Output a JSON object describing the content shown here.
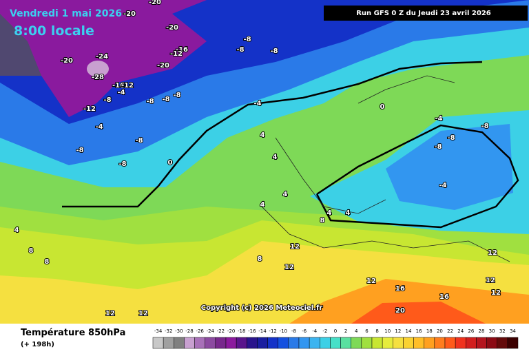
{
  "header": {
    "date": "Vendredi 1 mai 2026",
    "time": "8:00 locale",
    "run": "Run GFS 0 Z du Jeudi 23 avril 2026"
  },
  "copyright": "Copyright (c) 2026 Meteociel.fr",
  "footer": {
    "title": "Température 850hPa",
    "lead": "(+ 198h)"
  },
  "legend": {
    "ticks": [
      -34,
      -32,
      -30,
      -28,
      -26,
      -24,
      -22,
      -20,
      -18,
      -16,
      -14,
      -12,
      -10,
      -8,
      -6,
      -4,
      -2,
      0,
      2,
      4,
      6,
      8,
      10,
      12,
      14,
      16,
      18,
      20,
      22,
      24,
      26,
      28,
      30,
      32,
      34
    ],
    "colors": [
      "#c8c8c8",
      "#a0a0a0",
      "#808080",
      "#c8a0d0",
      "#a870b8",
      "#8c4aa0",
      "#78288c",
      "#8c1a9e",
      "#5a148c",
      "#2a148c",
      "#1a1ea0",
      "#1432c8",
      "#1450e0",
      "#2a7ae8",
      "#3296f0",
      "#3cb4f0",
      "#3cd0e6",
      "#46e0c8",
      "#5ae0a0",
      "#7ed957",
      "#a0e040",
      "#c8e632",
      "#e6ec3c",
      "#f5e040",
      "#fad232",
      "#ffbe28",
      "#ffa020",
      "#ff7d1e",
      "#ff5a1a",
      "#f0321e",
      "#d21e1e",
      "#b4141e",
      "#8c0a14",
      "#640a0a",
      "#3c0000"
    ]
  },
  "map": {
    "labels": [
      -20,
      -20,
      -20,
      -24,
      -28,
      -20,
      -20,
      -16,
      -12,
      -16,
      -12,
      -4,
      -8,
      -12,
      -4,
      -8,
      -8,
      -8,
      -8,
      -8,
      -8,
      -8,
      -8,
      -8,
      -4,
      0,
      4,
      4,
      4,
      4,
      4,
      8,
      8,
      8,
      12,
      12,
      12,
      16,
      16,
      20,
      12,
      12,
      -4,
      -8,
      -8,
      -4,
      -8,
      12,
      12,
      12,
      4,
      4,
      8,
      0
    ]
  }
}
